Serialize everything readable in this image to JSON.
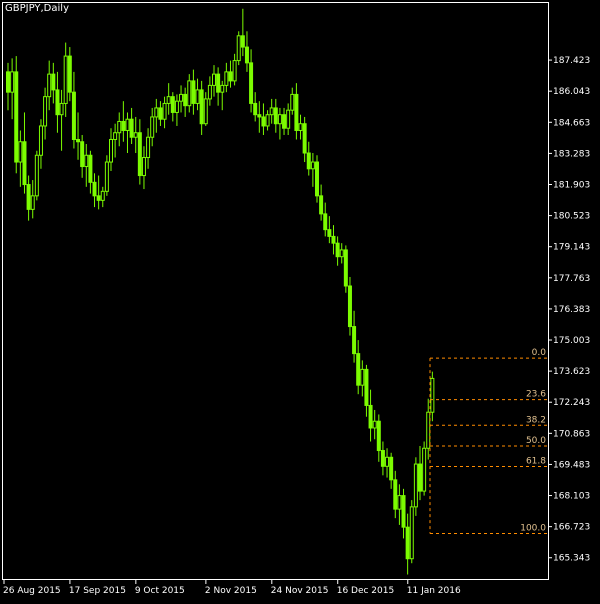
{
  "header": {
    "symbol_title": "GBPJPY,Daily"
  },
  "colors": {
    "background": "#000000",
    "frame": "#ffffff",
    "candles": "#7cfc00",
    "fibonacci": "#ff8c00",
    "axis_text": "#ffffff",
    "fib_text": "#e0c08f"
  },
  "chart_data": {
    "type": "candlestick",
    "symbol": "GBPJPY",
    "timeframe": "Daily",
    "ylim": [
      164.4,
      190.0
    ],
    "y_ticks": [
      "187.423",
      "186.043",
      "184.663",
      "183.283",
      "181.903",
      "180.523",
      "179.143",
      "177.763",
      "176.383",
      "175.003",
      "173.623",
      "172.243",
      "170.863",
      "169.483",
      "168.103",
      "166.723",
      "165.343"
    ],
    "x_ticks": [
      "26 Aug 2015",
      "17 Sep 2015",
      "9 Oct 2015",
      "2 Nov 2015",
      "24 Nov 2015",
      "16 Dec 2015",
      "11 Jan 2016"
    ],
    "x_tick_candle_index": [
      0,
      16,
      32,
      49,
      65,
      81,
      98
    ],
    "grid": false,
    "candles_ohlc": [
      [
        186.9,
        187.3,
        185.2,
        186.0
      ],
      [
        186.0,
        187.5,
        184.8,
        186.9
      ],
      [
        186.9,
        187.6,
        182.4,
        182.9
      ],
      [
        182.9,
        184.3,
        181.8,
        183.8
      ],
      [
        183.8,
        185.1,
        181.5,
        181.9
      ],
      [
        181.9,
        182.3,
        180.3,
        180.8
      ],
      [
        180.8,
        182.1,
        180.4,
        181.4
      ],
      [
        181.4,
        183.4,
        181.2,
        183.2
      ],
      [
        183.2,
        184.8,
        182.6,
        184.5
      ],
      [
        184.5,
        186.2,
        183.9,
        185.8
      ],
      [
        185.8,
        187.4,
        185.2,
        186.8
      ],
      [
        186.8,
        187.3,
        185.5,
        186.1
      ],
      [
        186.1,
        186.9,
        184.2,
        185.0
      ],
      [
        185.0,
        186.1,
        183.4,
        185.5
      ],
      [
        185.5,
        188.2,
        184.9,
        187.6
      ],
      [
        187.6,
        188.0,
        185.6,
        186.0
      ],
      [
        186.0,
        186.9,
        183.5,
        183.9
      ],
      [
        183.9,
        185.1,
        183.0,
        183.8
      ],
      [
        183.8,
        184.1,
        182.2,
        182.7
      ],
      [
        182.7,
        183.7,
        181.8,
        183.2
      ],
      [
        183.2,
        183.4,
        181.5,
        182.0
      ],
      [
        182.0,
        182.4,
        180.9,
        181.4
      ],
      [
        181.4,
        182.3,
        180.8,
        181.2
      ],
      [
        181.2,
        181.8,
        180.9,
        181.6
      ],
      [
        181.6,
        183.2,
        181.4,
        182.9
      ],
      [
        182.9,
        184.4,
        182.5,
        183.9
      ],
      [
        183.9,
        184.6,
        183.1,
        184.2
      ],
      [
        184.2,
        185.1,
        183.6,
        184.7
      ],
      [
        184.7,
        185.6,
        183.8,
        184.3
      ],
      [
        184.3,
        185.1,
        183.3,
        184.8
      ],
      [
        184.8,
        185.3,
        183.7,
        184.0
      ],
      [
        184.0,
        184.9,
        183.3,
        184.2
      ],
      [
        184.2,
        184.8,
        181.9,
        182.3
      ],
      [
        182.3,
        183.6,
        181.7,
        183.1
      ],
      [
        183.1,
        184.4,
        182.6,
        184.0
      ],
      [
        184.0,
        185.3,
        183.6,
        184.9
      ],
      [
        184.9,
        185.7,
        184.2,
        185.3
      ],
      [
        185.3,
        185.6,
        184.5,
        184.8
      ],
      [
        184.8,
        185.8,
        184.4,
        185.5
      ],
      [
        185.5,
        186.4,
        185.0,
        185.8
      ],
      [
        185.8,
        186.0,
        184.7,
        185.1
      ],
      [
        185.1,
        185.9,
        184.5,
        185.6
      ],
      [
        185.6,
        186.3,
        185.1,
        185.9
      ],
      [
        185.9,
        186.2,
        184.9,
        185.4
      ],
      [
        185.4,
        186.8,
        185.1,
        186.5
      ],
      [
        186.5,
        187.0,
        185.0,
        185.5
      ],
      [
        185.5,
        186.6,
        185.2,
        186.1
      ],
      [
        186.1,
        186.5,
        184.1,
        184.6
      ],
      [
        184.6,
        186.0,
        184.5,
        185.7
      ],
      [
        185.7,
        186.7,
        185.4,
        186.3
      ],
      [
        186.3,
        187.2,
        185.8,
        186.8
      ],
      [
        186.8,
        187.1,
        185.4,
        186.0
      ],
      [
        186.0,
        186.5,
        185.2,
        186.3
      ],
      [
        186.3,
        187.3,
        186.0,
        186.9
      ],
      [
        186.9,
        187.4,
        186.2,
        186.5
      ],
      [
        186.5,
        187.7,
        186.3,
        187.4
      ],
      [
        187.4,
        188.7,
        187.2,
        188.5
      ],
      [
        188.5,
        189.7,
        187.6,
        188.0
      ],
      [
        188.0,
        188.7,
        186.9,
        187.3
      ],
      [
        187.3,
        187.9,
        185.1,
        185.5
      ],
      [
        185.5,
        186.0,
        184.7,
        185.0
      ],
      [
        185.0,
        185.6,
        184.2,
        184.9
      ],
      [
        184.9,
        185.5,
        184.1,
        184.5
      ],
      [
        184.5,
        185.2,
        184.3,
        185.0
      ],
      [
        185.0,
        185.7,
        184.6,
        185.3
      ],
      [
        185.3,
        185.7,
        184.2,
        184.6
      ],
      [
        184.6,
        185.3,
        183.9,
        185.0
      ],
      [
        185.0,
        185.3,
        184.1,
        184.4
      ],
      [
        184.4,
        185.5,
        184.1,
        185.2
      ],
      [
        185.2,
        186.2,
        185.0,
        185.9
      ],
      [
        185.9,
        186.4,
        183.9,
        184.3
      ],
      [
        184.3,
        185.0,
        183.9,
        184.6
      ],
      [
        184.6,
        184.9,
        182.9,
        183.3
      ],
      [
        183.3,
        183.8,
        182.3,
        182.6
      ],
      [
        182.6,
        183.3,
        181.8,
        182.9
      ],
      [
        182.9,
        183.2,
        181.1,
        181.4
      ],
      [
        181.4,
        181.9,
        180.3,
        180.6
      ],
      [
        180.6,
        181.1,
        179.6,
        179.9
      ],
      [
        179.9,
        180.5,
        179.3,
        179.6
      ],
      [
        179.6,
        180.1,
        178.8,
        179.3
      ],
      [
        179.3,
        179.6,
        178.3,
        178.7
      ],
      [
        178.7,
        179.3,
        178.4,
        179.0
      ],
      [
        179.0,
        179.2,
        177.1,
        177.4
      ],
      [
        177.4,
        177.8,
        175.2,
        175.6
      ],
      [
        175.6,
        176.3,
        174.0,
        174.4
      ],
      [
        174.4,
        175.0,
        172.6,
        173.0
      ],
      [
        173.0,
        174.1,
        172.5,
        173.7
      ],
      [
        173.7,
        173.9,
        171.6,
        172.1
      ],
      [
        172.1,
        172.8,
        170.5,
        171.1
      ],
      [
        171.1,
        171.9,
        170.6,
        171.4
      ],
      [
        171.4,
        171.7,
        169.6,
        170.1
      ],
      [
        170.1,
        170.5,
        169.0,
        169.4
      ],
      [
        169.4,
        170.2,
        168.9,
        169.8
      ],
      [
        169.8,
        170.0,
        168.4,
        168.8
      ],
      [
        168.8,
        169.2,
        167.1,
        167.5
      ],
      [
        167.5,
        168.6,
        166.8,
        168.1
      ],
      [
        168.1,
        168.4,
        166.2,
        166.7
      ],
      [
        166.7,
        167.3,
        164.6,
        165.3
      ],
      [
        165.3,
        167.9,
        165.1,
        167.6
      ],
      [
        167.6,
        169.8,
        167.2,
        169.5
      ],
      [
        169.5,
        170.3,
        167.9,
        168.3
      ],
      [
        168.3,
        170.5,
        168.1,
        170.2
      ],
      [
        170.2,
        172.4,
        169.7,
        171.8
      ],
      [
        171.8,
        173.6,
        171.4,
        173.3
      ]
    ],
    "fibonacci": {
      "levels": [
        {
          "label": "0.0",
          "price": 174.2
        },
        {
          "label": "23.6",
          "price": 172.36
        },
        {
          "label": "38.2",
          "price": 171.22
        },
        {
          "label": "50.0",
          "price": 170.3
        },
        {
          "label": "61.8",
          "price": 169.39
        },
        {
          "label": "100.0",
          "price": 166.42
        }
      ]
    }
  }
}
